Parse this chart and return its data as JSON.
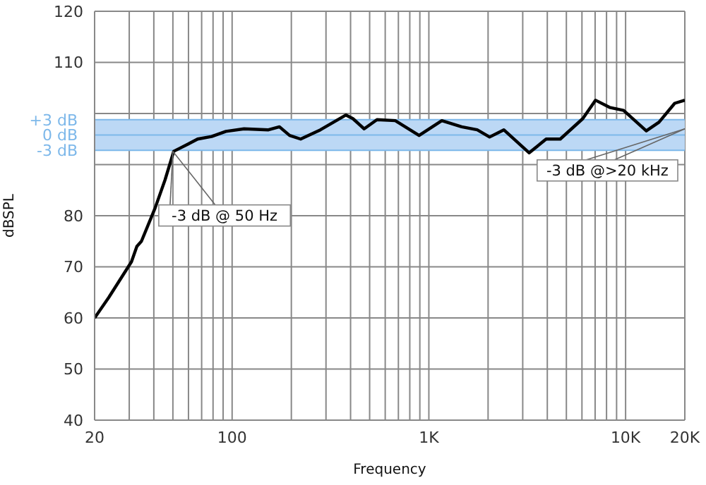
{
  "chart_data": {
    "type": "line",
    "xlabel": "Frequency",
    "ylabel": "dBSPL",
    "x": [
      20,
      23.6,
      30.8,
      32.8,
      34.6,
      40.6,
      45.6,
      50.5,
      59.6,
      66.8,
      78.7,
      93,
      115,
      153,
      174,
      196,
      223,
      281,
      379,
      411,
      469,
      545,
      675,
      892,
      1164,
      1468,
      1761,
      2036,
      2404,
      2742,
      3236,
      3946,
      4656,
      6060,
      7030,
      8290,
      9770,
      12740,
      14780,
      17770,
      20000
    ],
    "series": [
      {
        "color": "#000000",
        "values": [
          60,
          64,
          71,
          74,
          75,
          81.5,
          87,
          92.6,
          94,
          95,
          95.5,
          96.5,
          97,
          96.8,
          97.4,
          95.7,
          95,
          96.8,
          99.7,
          99,
          97,
          98.8,
          98.6,
          95.7,
          98.6,
          97.4,
          96.8,
          95.4,
          96.8,
          94.8,
          92.3,
          95,
          95,
          99,
          102.6,
          101.2,
          100.6,
          96.6,
          98.3,
          102,
          102.6
        ]
      }
    ],
    "log": "x",
    "xlim": [
      20,
      20000
    ],
    "xticks": [
      20,
      {
        "value": 30,
        "label": null
      },
      {
        "value": 40,
        "label": null
      },
      {
        "value": 50,
        "label": null
      },
      {
        "value": 60,
        "label": null
      },
      {
        "value": 70,
        "label": null
      },
      {
        "value": 80,
        "label": null
      },
      {
        "value": 90,
        "label": null
      },
      100,
      {
        "value": 200,
        "label": null
      },
      {
        "value": 300,
        "label": null
      },
      {
        "value": 400,
        "label": null
      },
      {
        "value": 500,
        "label": null
      },
      {
        "value": 600,
        "label": null
      },
      {
        "value": 700,
        "label": null
      },
      {
        "value": 800,
        "label": null
      },
      {
        "value": 900,
        "label": null
      },
      {
        "value": 1000,
        "label": "1K"
      },
      {
        "value": 2000,
        "label": null
      },
      {
        "value": 3000,
        "label": null
      },
      {
        "value": 4000,
        "label": null
      },
      {
        "value": 5000,
        "label": null
      },
      {
        "value": 6000,
        "label": null
      },
      {
        "value": 7000,
        "label": null
      },
      {
        "value": 8000,
        "label": null
      },
      {
        "value": 9000,
        "label": null
      },
      {
        "value": 10000,
        "label": "10K"
      },
      {
        "value": 20000,
        "label": "20K"
      }
    ],
    "ylim": [
      40,
      120
    ],
    "yticks": [
      40,
      50,
      60,
      70,
      80,
      {
        "value": 90,
        "label": null
      },
      {
        "value": 100,
        "label": null
      },
      110,
      120
    ],
    "grid": true,
    "marker": "none",
    "line_style": "solid",
    "bands": [
      {
        "axis": "y",
        "from": 92.8,
        "to": 98.8,
        "color": "#bcd8f5"
      }
    ],
    "ref_lines": [
      {
        "axis": "y",
        "value": 98.8,
        "label": "+3 dB",
        "color": "#7db8ea"
      },
      {
        "axis": "y",
        "value": 95.8,
        "label": "0 dB",
        "color": "#7db8ea"
      },
      {
        "axis": "y",
        "value": 92.8,
        "label": "-3 dB",
        "color": "#7db8ea"
      }
    ],
    "annotations": [
      {
        "text": "-3 dB @ 50 Hz",
        "x": 50,
        "y": 92.6
      },
      {
        "text": "-3 dB @>20 kHz",
        "x": 20000,
        "y": 97
      }
    ]
  }
}
